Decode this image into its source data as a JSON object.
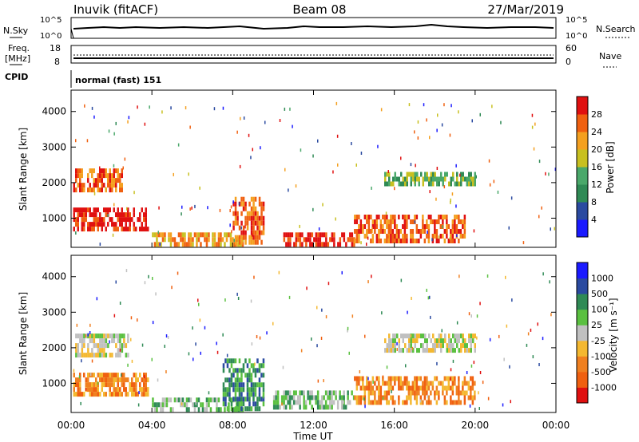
{
  "header": {
    "station": "Inuvik (fitACF)",
    "beam": "Beam 08",
    "date": "27/Mar/2019"
  },
  "top_panels": {
    "nsky_label": "N.Sky",
    "nsky_ticks": [
      "10^5",
      "10^0"
    ],
    "nsearch_label": "N.Search",
    "nsearch_ticks": [
      "10^5",
      "10^0"
    ],
    "freq_label_1": "Freq.",
    "freq_label_2": "[MHz]",
    "freq_ticks": [
      "18",
      "8"
    ],
    "nave_label": "Nave",
    "nave_ticks": [
      "60",
      "0"
    ],
    "cpid_label": "CPID",
    "cpid_text": "normal (fast) 151"
  },
  "chart_data": [
    {
      "type": "heatmap",
      "name": "power",
      "ylabel": "Slant Range [km]",
      "yticks": [
        "1000",
        "2000",
        "3000",
        "4000"
      ],
      "xticks": [
        "00:00",
        "04:00",
        "08:00",
        "12:00",
        "16:00",
        "20:00",
        "00:00"
      ],
      "xlim_hours": [
        0,
        24
      ],
      "ylim_km": [
        180,
        4600
      ],
      "colorbar": {
        "label": "Power [dB]",
        "ticks": [
          "4",
          "8",
          "12",
          "16",
          "20",
          "24",
          "28"
        ],
        "colors": [
          "#1a1aff",
          "#2a4aa0",
          "#2f8a55",
          "#4aa86a",
          "#c8c020",
          "#f4a020",
          "#f06010",
          "#e01010"
        ]
      },
      "regions": [
        {
          "t0": 0.1,
          "t1": 3.8,
          "r0": 700,
          "r1": 1300,
          "level": 7
        },
        {
          "t0": 0.1,
          "t1": 2.5,
          "r0": 1800,
          "r1": 2400,
          "level": 6
        },
        {
          "t0": 4.0,
          "t1": 8.5,
          "r0": 300,
          "r1": 600,
          "level": 5
        },
        {
          "t0": 8.0,
          "t1": 9.5,
          "r0": 300,
          "r1": 1600,
          "level": 6
        },
        {
          "t0": 10.5,
          "t1": 14.0,
          "r0": 250,
          "r1": 600,
          "level": 7
        },
        {
          "t0": 14.0,
          "t1": 19.5,
          "r0": 400,
          "r1": 1100,
          "level": 6
        },
        {
          "t0": 15.5,
          "t1": 20.0,
          "r0": 1900,
          "r1": 2300,
          "level": 3
        }
      ]
    },
    {
      "type": "heatmap",
      "name": "velocity",
      "ylabel": "Slant Range [km]",
      "yticks": [
        "1000",
        "2000",
        "3000",
        "4000"
      ],
      "xticks": [
        "00:00",
        "04:00",
        "08:00",
        "12:00",
        "16:00",
        "20:00",
        "00:00"
      ],
      "xlabel": "Time UT",
      "xlim_hours": [
        0,
        24
      ],
      "ylim_km": [
        180,
        4600
      ],
      "colorbar": {
        "label": "Velocity [m s⁻¹]",
        "ticks": [
          "-1000",
          "-500",
          "-100",
          "-25",
          "25",
          "100",
          "500",
          "1000"
        ],
        "colors": [
          "#e01010",
          "#f06010",
          "#f08020",
          "#f4b830",
          "#c0c0c0",
          "#5ac040",
          "#2f8a55",
          "#2a4aa0",
          "#1a1aff"
        ]
      },
      "regions": [
        {
          "t0": 0.1,
          "t1": 3.8,
          "r0": 700,
          "r1": 1300,
          "level": 2
        },
        {
          "t0": 0.2,
          "t1": 2.8,
          "r0": 1800,
          "r1": 2400,
          "level": 4
        },
        {
          "t0": 4.0,
          "t1": 8.5,
          "r0": 300,
          "r1": 600,
          "level": 5
        },
        {
          "t0": 7.5,
          "t1": 9.5,
          "r0": 300,
          "r1": 1700,
          "level": 6
        },
        {
          "t0": 10.0,
          "t1": 14.0,
          "r0": 300,
          "r1": 800,
          "level": 5
        },
        {
          "t0": 14.0,
          "t1": 20.0,
          "r0": 400,
          "r1": 1200,
          "level": 2
        },
        {
          "t0": 15.5,
          "t1": 20.0,
          "r0": 1900,
          "r1": 2400,
          "level": 4
        }
      ]
    }
  ]
}
